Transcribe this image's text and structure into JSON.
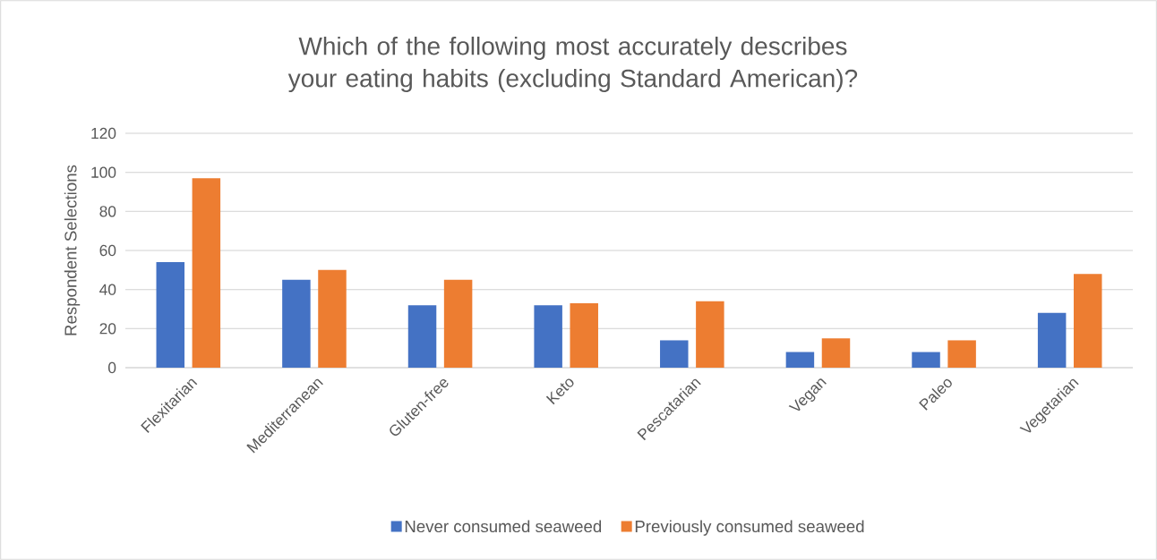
{
  "chart_data": {
    "type": "bar",
    "title": "Which of the following most accurately describes your eating habits (excluding Standard American)?",
    "ylabel": "Respondent Selections",
    "categories": [
      "Flexitarian",
      "Mediterranean",
      "Gluten-free",
      "Keto",
      "Pescatarian",
      "Vegan",
      "Paleo",
      "Vegetarian"
    ],
    "series": [
      {
        "name": "Never consumed seaweed",
        "color": "#4472c4",
        "values": [
          54,
          45,
          32,
          32,
          14,
          8,
          8,
          28
        ]
      },
      {
        "name": "Previously consumed seaweed",
        "color": "#ed7d31",
        "values": [
          97,
          50,
          45,
          33,
          34,
          15,
          14,
          48
        ]
      }
    ],
    "ylim": [
      0,
      120
    ],
    "yticks": [
      0,
      20,
      40,
      60,
      80,
      100,
      120
    ],
    "grid": "y",
    "legend": "bottom"
  }
}
